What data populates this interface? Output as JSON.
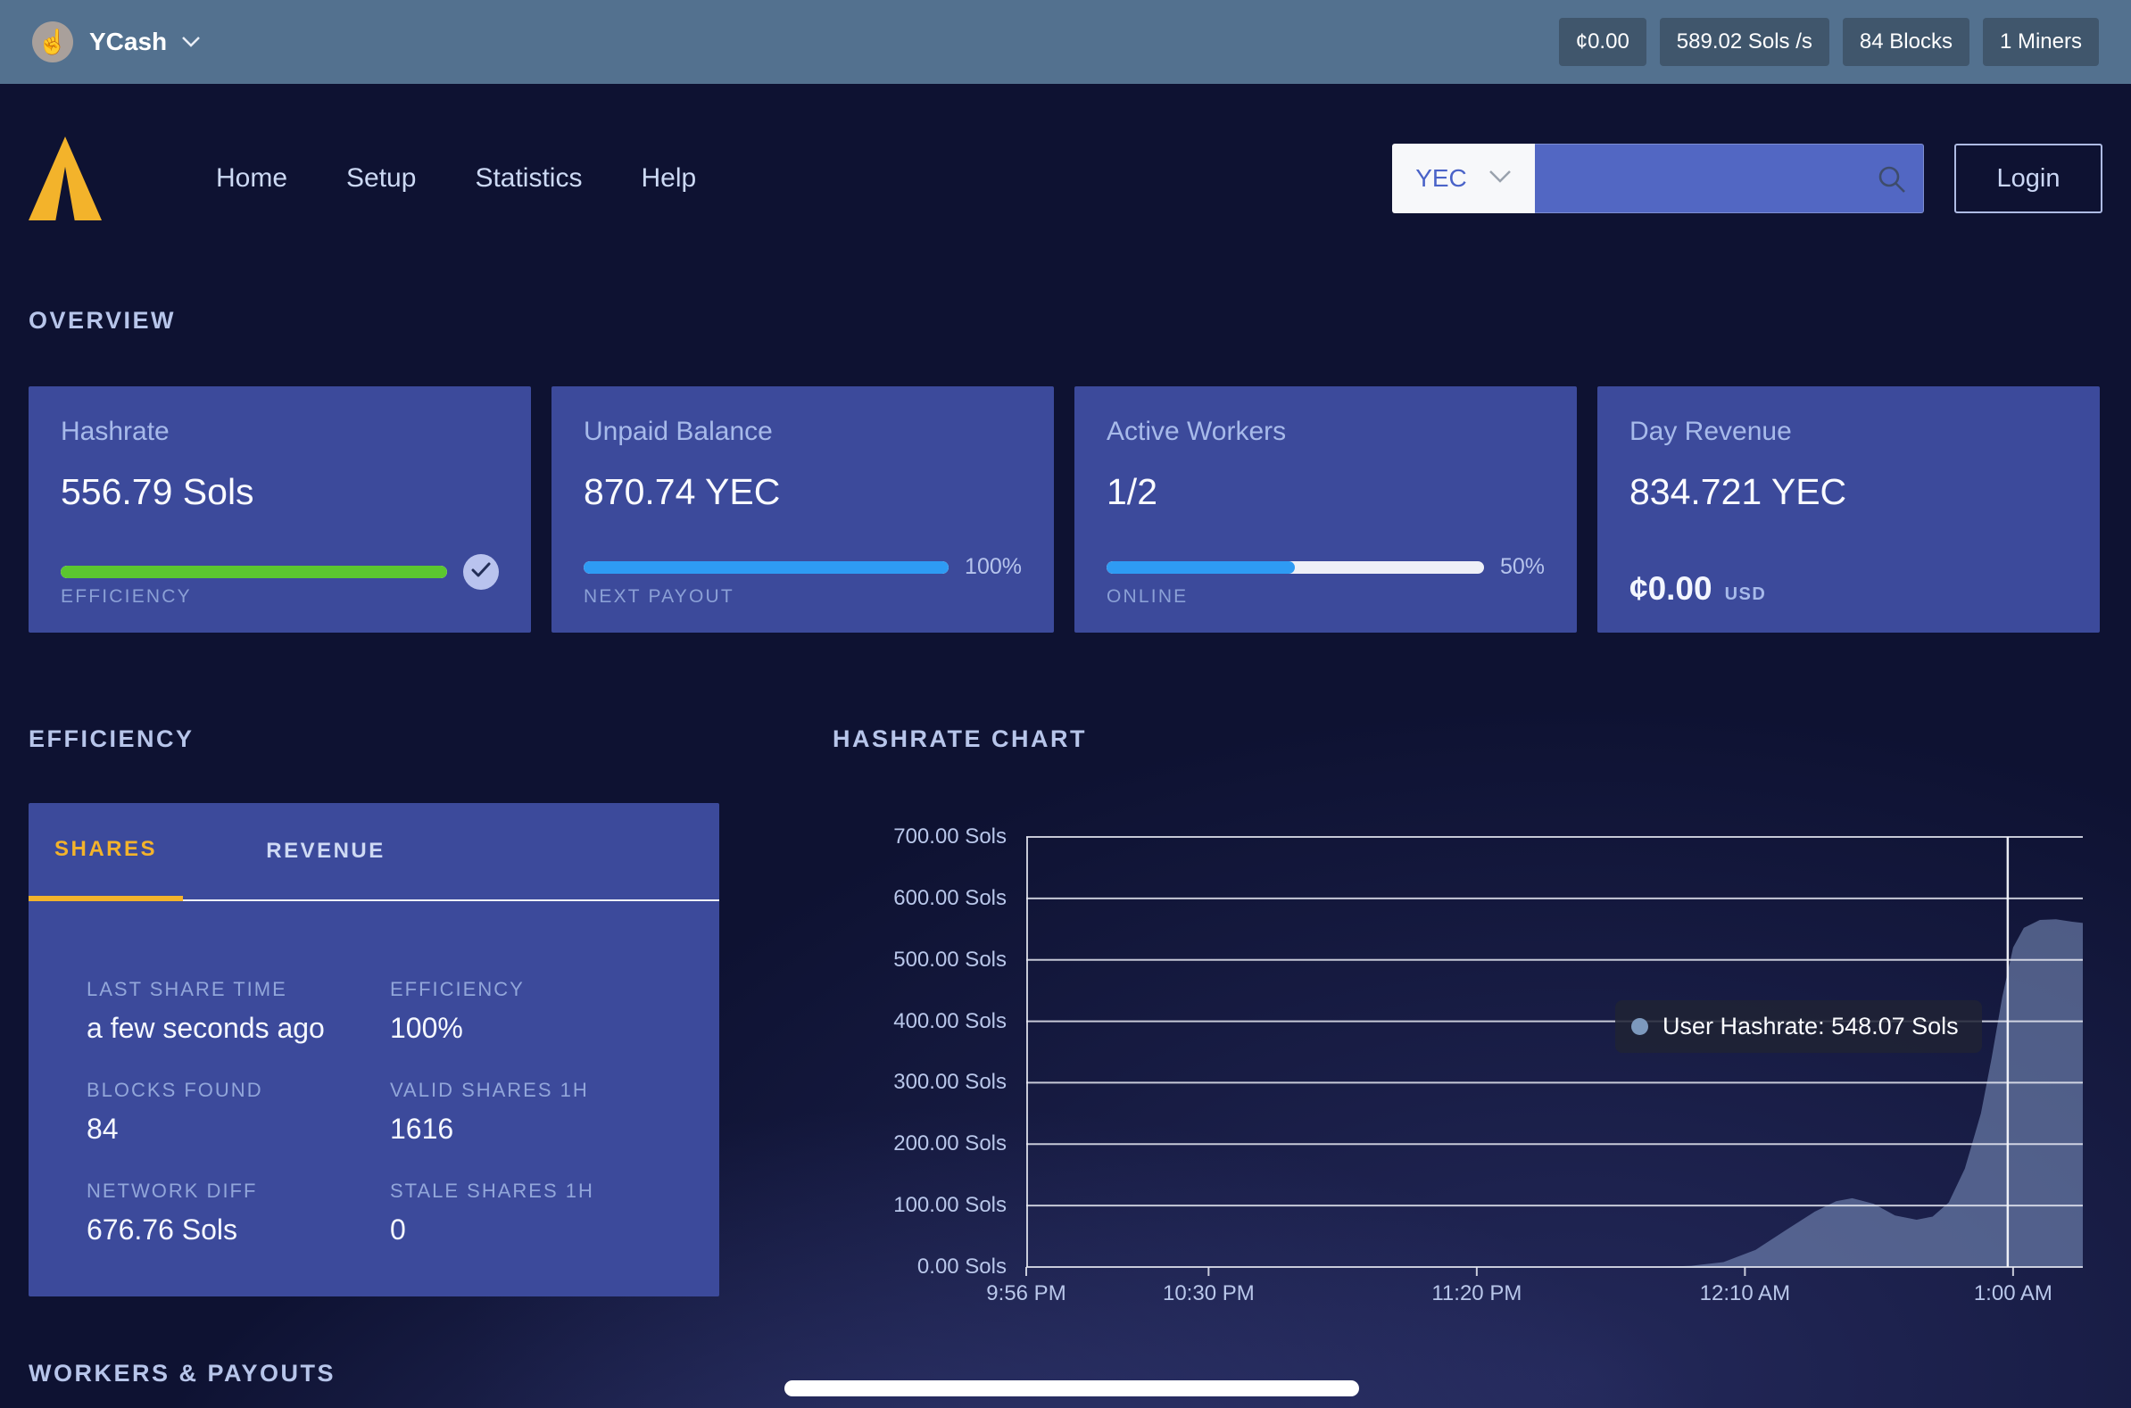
{
  "colors": {
    "accent": "#f3b32b",
    "progress_green": "#5bc72f",
    "progress_blue": "#2e9bf4",
    "area_fill": "#8298c4"
  },
  "topbar": {
    "brand": "YCash",
    "stats": [
      "¢0.00",
      "589.02 Sols /s",
      "84 Blocks",
      "1 Miners"
    ]
  },
  "nav": {
    "links": [
      "Home",
      "Setup",
      "Statistics",
      "Help"
    ],
    "currency": "YEC",
    "search_placeholder": "",
    "login_label": "Login"
  },
  "sections": {
    "overview": "OVERVIEW",
    "efficiency": "EFFICIENCY",
    "hashrate_chart": "HASHRATE CHART",
    "workers_payouts": "WORKERS & PAYOUTS"
  },
  "cards": [
    {
      "title": "Hashrate",
      "value": "556.79 Sols",
      "label": "EFFICIENCY",
      "progress": 100,
      "bar": "green",
      "badge": "check"
    },
    {
      "title": "Unpaid Balance",
      "value": "870.74 YEC",
      "label": "NEXT PAYOUT",
      "progress": 100,
      "bar": "blue",
      "percent": "100%"
    },
    {
      "title": "Active Workers",
      "value": "1/2",
      "label": "ONLINE",
      "progress": 50,
      "bar": "blue",
      "percent": "50%"
    },
    {
      "title": "Day Revenue",
      "value": "834.721 YEC",
      "sub_amount": "¢0.00",
      "sub_unit": "USD"
    }
  ],
  "efficiency_panel": {
    "tabs": [
      "SHARES",
      "REVENUE"
    ],
    "active_tab": "SHARES",
    "stats": [
      {
        "label": "LAST SHARE TIME",
        "value": "a few seconds ago"
      },
      {
        "label": "EFFICIENCY",
        "value": "100%"
      },
      {
        "label": "BLOCKS FOUND",
        "value": "84"
      },
      {
        "label": "VALID SHARES 1H",
        "value": "1616"
      },
      {
        "label": "NETWORK DIFF",
        "value": "676.76 Sols"
      },
      {
        "label": "STALE SHARES 1H",
        "value": "0"
      }
    ]
  },
  "chart_data": {
    "type": "area",
    "title": "HASHRATE CHART",
    "unit": "Sols",
    "ylim": [
      0,
      700
    ],
    "grid": true,
    "y_ticks": [
      "700.00 Sols",
      "600.00 Sols",
      "500.00 Sols",
      "400.00 Sols",
      "300.00 Sols",
      "200.00 Sols",
      "100.00 Sols",
      "0.00 Sols"
    ],
    "x_ticks": [
      {
        "label": "9:56 PM",
        "min": 0
      },
      {
        "label": "10:30 PM",
        "min": 34
      },
      {
        "label": "11:20 PM",
        "min": 84
      },
      {
        "label": "12:10 AM",
        "min": 134
      },
      {
        "label": "1:00 AM",
        "min": 184
      }
    ],
    "x_total_min": 197,
    "series": [
      {
        "name": "User Hashrate",
        "points_min_sols": [
          [
            0,
            0
          ],
          [
            60,
            0
          ],
          [
            100,
            0
          ],
          [
            118,
            0
          ],
          [
            124,
            2
          ],
          [
            130,
            8
          ],
          [
            136,
            28
          ],
          [
            142,
            62
          ],
          [
            147,
            90
          ],
          [
            151,
            107
          ],
          [
            154,
            112
          ],
          [
            158,
            103
          ],
          [
            162,
            84
          ],
          [
            166,
            77
          ],
          [
            169,
            82
          ],
          [
            172,
            105
          ],
          [
            175,
            160
          ],
          [
            178,
            250
          ],
          [
            180,
            340
          ],
          [
            182,
            440
          ],
          [
            184,
            520
          ],
          [
            186,
            552
          ],
          [
            189,
            565
          ],
          [
            192,
            566
          ],
          [
            195,
            562
          ],
          [
            197,
            560
          ]
        ]
      }
    ],
    "crosshair_min": 183,
    "tooltip": {
      "series": "User Hashrate",
      "value": "548.07 Sols",
      "text": "User Hashrate: 548.07 Sols"
    }
  }
}
